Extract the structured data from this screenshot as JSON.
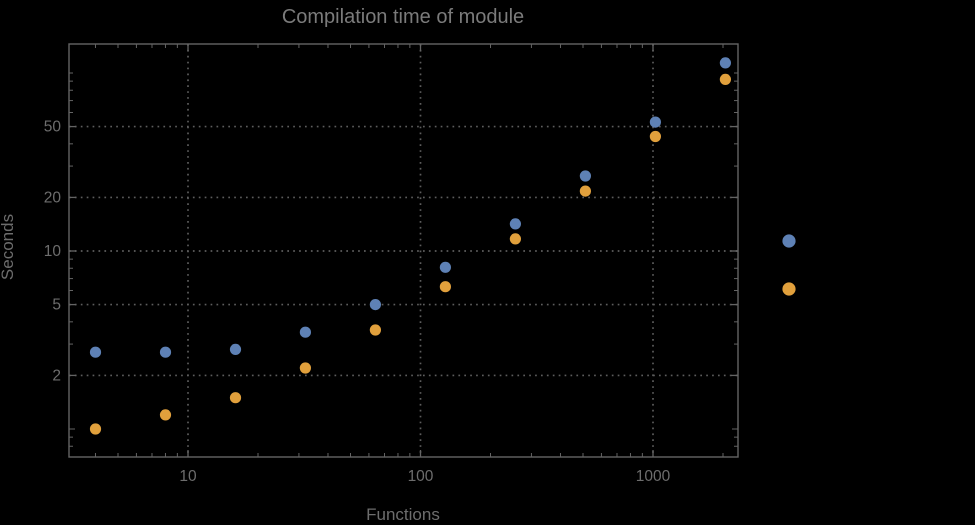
{
  "window": {
    "background_color": "#000000"
  },
  "chart_data": {
    "type": "scatter",
    "title": "Compilation time of module",
    "xlabel": "Functions",
    "ylabel": "Seconds",
    "x_scale": "log",
    "y_scale": "log",
    "xlim": [
      3.1,
      2320
    ],
    "ylim": [
      0.7,
      148
    ],
    "grid": "dotted, at labeled major ticks only",
    "legend_position": "right of frame, markers only (labels not visible)",
    "x": [
      4,
      8,
      16,
      32,
      64,
      128,
      256,
      512,
      1024,
      2048
    ],
    "series": [
      {
        "name": "blue-series",
        "color": "#5E81B5",
        "values": [
          2.7,
          2.7,
          2.8,
          3.5,
          5.0,
          8.1,
          14.2,
          26.4,
          53,
          114
        ]
      },
      {
        "name": "orange-series",
        "color": "#E1A03C",
        "values": [
          1.0,
          1.2,
          1.5,
          2.2,
          3.6,
          6.3,
          11.7,
          21.7,
          44,
          92
        ]
      }
    ],
    "x_ticks_major": [
      {
        "value": 10,
        "label": "10"
      },
      {
        "value": 100,
        "label": "100"
      },
      {
        "value": 1000,
        "label": "1000"
      }
    ],
    "y_ticks_major": [
      {
        "value": 2,
        "label": "2"
      },
      {
        "value": 5,
        "label": "5"
      },
      {
        "value": 10,
        "label": "10"
      },
      {
        "value": 20,
        "label": "20"
      },
      {
        "value": 50,
        "label": "50"
      }
    ],
    "x_ticks_minor": [
      4,
      5,
      6,
      7,
      8,
      9,
      20,
      30,
      40,
      50,
      60,
      70,
      80,
      90,
      200,
      300,
      400,
      500,
      600,
      700,
      800,
      900,
      2000
    ],
    "y_ticks_minor": [
      0.8,
      0.9,
      1,
      3,
      4,
      6,
      7,
      8,
      9,
      30,
      40,
      60,
      70,
      80,
      90,
      100
    ],
    "legend_markers": [
      {
        "color": "#5E81B5"
      },
      {
        "color": "#E1A03C"
      }
    ]
  },
  "style": {
    "frame_color": "#646464",
    "grid_color": "#5d5d5d",
    "text_color": "#6d6d6d",
    "title_color": "#7b7b7b"
  }
}
